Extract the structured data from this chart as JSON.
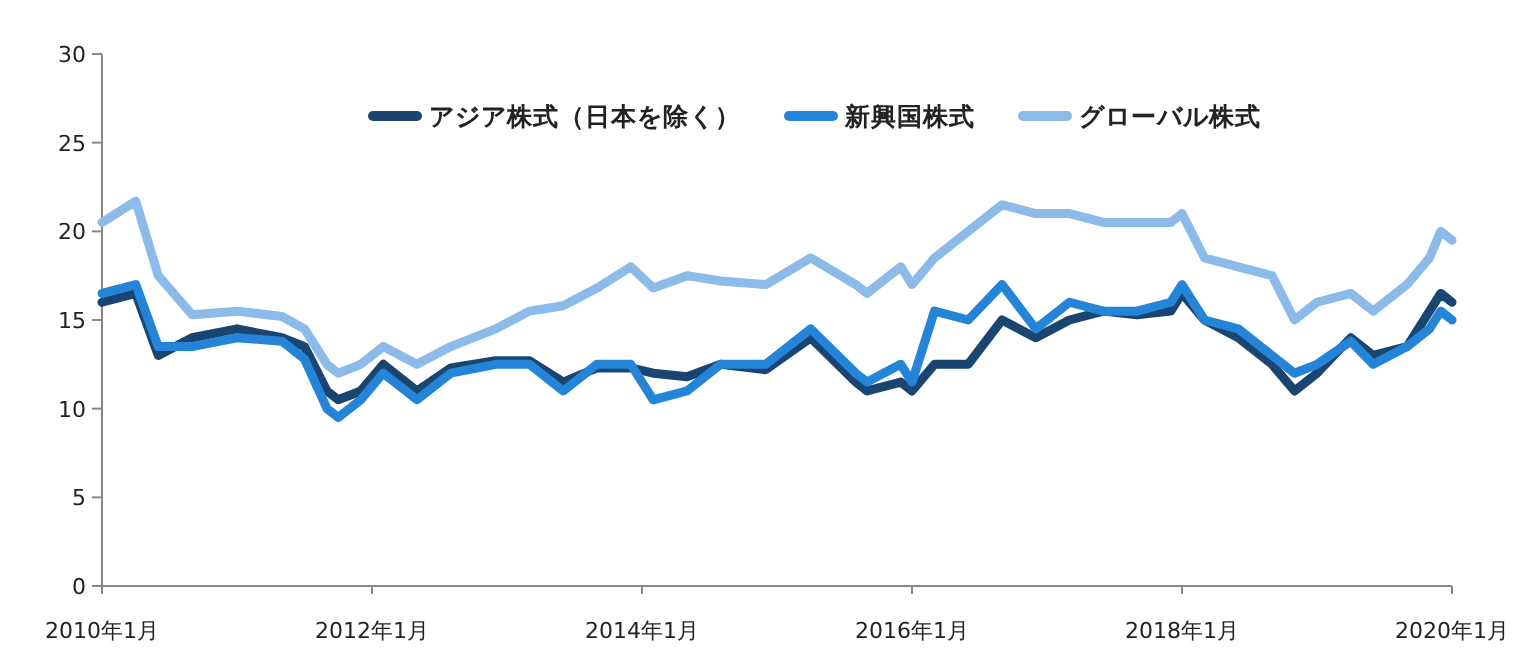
{
  "chart_data": {
    "type": "line",
    "legend": "top",
    "grid": false,
    "line_style": "solid",
    "marker": "none",
    "xlim": [
      "2010-01",
      "2020-01"
    ],
    "xticks": [
      {
        "value": "2010-01",
        "label": "2010年1月"
      },
      {
        "value": "2012-01",
        "label": "2012年1月"
      },
      {
        "value": "2014-01",
        "label": "2014年1月"
      },
      {
        "value": "2016-01",
        "label": "2016年1月"
      },
      {
        "value": "2018-01",
        "label": "2018年1月"
      },
      {
        "value": "2020-01",
        "label": "2020年1月"
      }
    ],
    "ylim": [
      0,
      30
    ],
    "yticks": [
      0,
      5,
      10,
      15,
      20,
      25,
      30
    ],
    "x": [
      "2010-01",
      "2010-04",
      "2010-06",
      "2010-09",
      "2011-01",
      "2011-05",
      "2011-07",
      "2011-09",
      "2011-10",
      "2011-12",
      "2012-02",
      "2012-05",
      "2012-08",
      "2012-12",
      "2013-03",
      "2013-06",
      "2013-09",
      "2013-12",
      "2014-02",
      "2014-05",
      "2014-08",
      "2014-12",
      "2015-04",
      "2015-08",
      "2015-09",
      "2015-12",
      "2016-01",
      "2016-03",
      "2016-06",
      "2016-09",
      "2016-12",
      "2017-03",
      "2017-06",
      "2017-09",
      "2017-12",
      "2018-01",
      "2018-03",
      "2018-06",
      "2018-09",
      "2018-11",
      "2019-01",
      "2019-04",
      "2019-06",
      "2019-09",
      "2019-11",
      "2019-12",
      "2020-01"
    ],
    "series": [
      {
        "name": "アジア株式（日本を除く）",
        "color": "#1a4570",
        "values": [
          16,
          16.5,
          13,
          14,
          14.5,
          14,
          13.5,
          11,
          10.5,
          11,
          12.5,
          11,
          12.3,
          12.7,
          12.7,
          11.5,
          12.3,
          12.3,
          12,
          11.8,
          12.5,
          12.2,
          14,
          11.5,
          11,
          11.5,
          11,
          12.5,
          12.5,
          15,
          14,
          15,
          15.5,
          15.3,
          15.5,
          16.5,
          15,
          14,
          12.5,
          11,
          12,
          14,
          13,
          13.5,
          15.5,
          16.5,
          16
        ]
      },
      {
        "name": "新興国株式",
        "color": "#2484d8",
        "values": [
          16.5,
          17,
          13.5,
          13.5,
          14,
          13.8,
          12.8,
          10,
          9.5,
          10.5,
          12,
          10.5,
          12,
          12.5,
          12.5,
          11,
          12.5,
          12.5,
          10.5,
          11,
          12.5,
          12.5,
          14.5,
          12,
          11.5,
          12.5,
          11.5,
          15.5,
          15,
          17,
          14.5,
          16,
          15.5,
          15.5,
          16,
          17,
          15,
          14.5,
          13,
          12,
          12.5,
          13.8,
          12.5,
          13.5,
          14.5,
          15.5,
          15
        ]
      },
      {
        "name": "グローバル株式",
        "color": "#8cbbea",
        "values": [
          20.5,
          21.7,
          17.5,
          15.3,
          15.5,
          15.2,
          14.5,
          12.5,
          12,
          12.5,
          13.5,
          12.5,
          13.5,
          14.5,
          15.5,
          15.8,
          16.8,
          18,
          16.8,
          17.5,
          17.2,
          17,
          18.5,
          17,
          16.5,
          18,
          17,
          18.5,
          20,
          21.5,
          21,
          21,
          20.5,
          20.5,
          20.5,
          21,
          18.5,
          18,
          17.5,
          15,
          16,
          16.5,
          15.5,
          17,
          18.5,
          20,
          19.5
        ]
      }
    ]
  }
}
